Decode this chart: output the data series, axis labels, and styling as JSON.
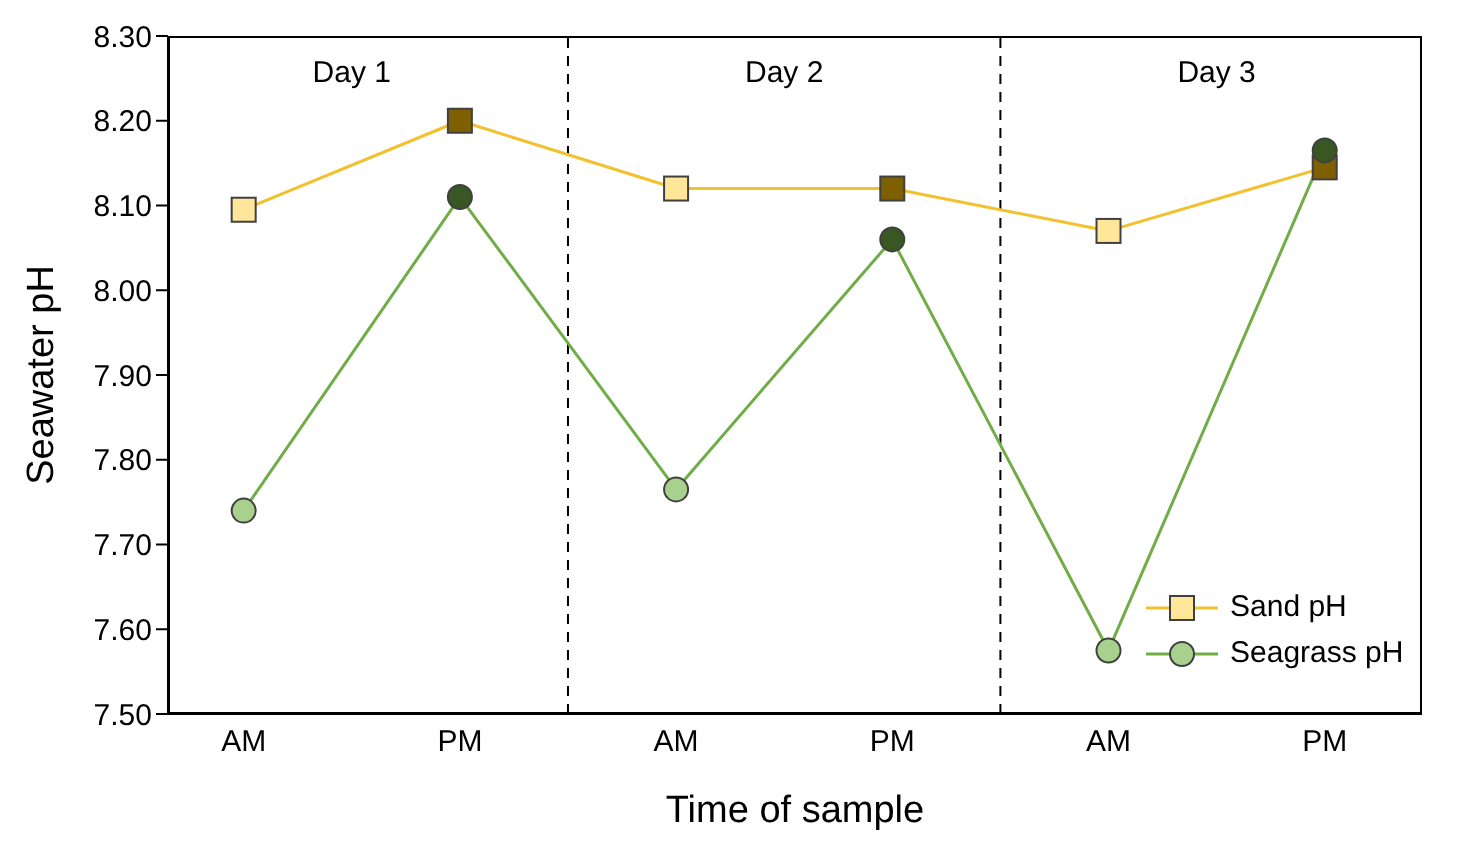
{
  "chart_data": {
    "type": "line",
    "xlabel": "Time of sample",
    "ylabel": "Seawater pH",
    "categories": [
      "AM",
      "PM",
      "AM",
      "PM",
      "AM",
      "PM"
    ],
    "ylim": [
      7.5,
      8.3
    ],
    "yticks": [
      {
        "value": 7.5,
        "label": "7.50"
      },
      {
        "value": 7.6,
        "label": "7.60"
      },
      {
        "value": 7.7,
        "label": "7.70"
      },
      {
        "value": 7.8,
        "label": "7.80"
      },
      {
        "value": 7.9,
        "label": "7.90"
      },
      {
        "value": 8.0,
        "label": "8.00"
      },
      {
        "value": 8.1,
        "label": "8.10"
      },
      {
        "value": 8.2,
        "label": "8.20"
      },
      {
        "value": 8.3,
        "label": "8.30"
      }
    ],
    "series": [
      {
        "name": "Sand pH",
        "color": "#f2c12e",
        "marker": "square",
        "colors": [
          "#ffe699",
          "#7f6000",
          "#ffe699",
          "#7f6000",
          "#ffe699",
          "#7f6000"
        ],
        "values": [
          8.095,
          8.2,
          8.12,
          8.12,
          8.07,
          8.145
        ]
      },
      {
        "name": "Seagrass pH",
        "color": "#70ad47",
        "marker": "circle",
        "colors": [
          "#a9d18e",
          "#385723",
          "#a9d18e",
          "#385723",
          "#a9d18e",
          "#385723"
        ],
        "values": [
          7.74,
          8.11,
          7.765,
          8.06,
          7.575,
          8.165
        ]
      }
    ],
    "annotations": [
      "Day 1",
      "Day 2",
      "Day 3"
    ],
    "grid": false,
    "legend": "bottom right"
  }
}
